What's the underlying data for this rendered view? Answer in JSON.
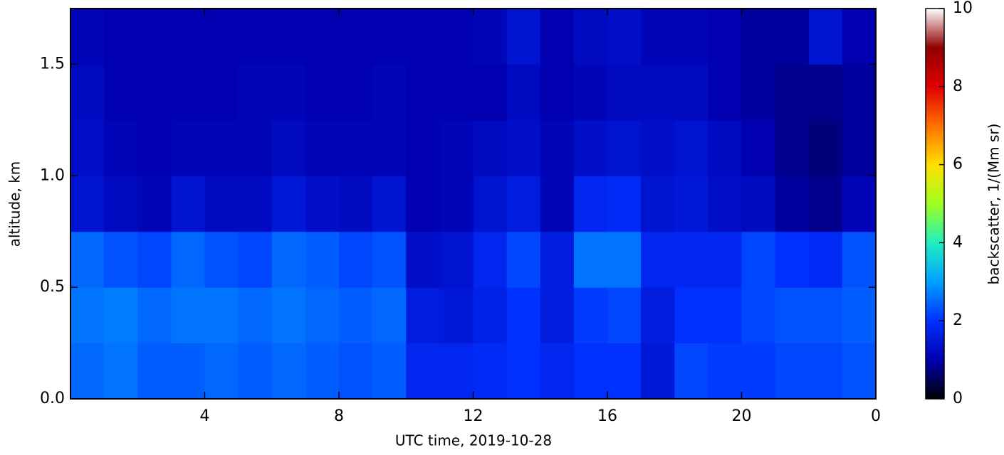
{
  "chart_data": {
    "type": "heatmap",
    "xlabel": "UTC time,  2019-10-28",
    "ylabel": "altitude, km",
    "colorbar_label": "backscatter, 1/(Mm sr)",
    "xbins": [
      0,
      1,
      2,
      3,
      4,
      5,
      6,
      7,
      8,
      9,
      10,
      11,
      12,
      13,
      14,
      15,
      16,
      17,
      18,
      19,
      20,
      21,
      22,
      23,
      24
    ],
    "ybins": [
      0,
      0.25,
      0.5,
      0.75,
      1.0,
      1.25,
      1.5,
      1.75
    ],
    "values": [
      [
        2.5,
        2.6,
        2.4,
        2.4,
        2.5,
        2.4,
        2.5,
        2.4,
        2.3,
        2.4,
        1.8,
        1.8,
        1.9,
        2.0,
        1.8,
        2.0,
        2.0,
        1.5,
        2.2,
        2.1,
        2.1,
        2.2,
        2.2,
        2.3
      ],
      [
        2.6,
        2.7,
        2.5,
        2.6,
        2.6,
        2.5,
        2.6,
        2.5,
        2.4,
        2.5,
        1.6,
        1.5,
        1.7,
        2.0,
        1.6,
        2.1,
        2.2,
        1.6,
        2.0,
        2.0,
        2.2,
        2.3,
        2.3,
        2.4
      ],
      [
        2.5,
        2.3,
        2.2,
        2.5,
        2.3,
        2.2,
        2.5,
        2.4,
        2.2,
        2.3,
        1.3,
        1.4,
        1.8,
        2.2,
        1.6,
        2.6,
        2.6,
        1.8,
        1.8,
        1.8,
        2.2,
        2.0,
        1.9,
        2.3
      ],
      [
        1.4,
        1.2,
        1.1,
        1.4,
        1.2,
        1.2,
        1.5,
        1.3,
        1.2,
        1.4,
        1.0,
        1.1,
        1.4,
        1.6,
        1.1,
        1.8,
        1.9,
        1.4,
        1.5,
        1.3,
        1.2,
        0.9,
        0.8,
        1.1
      ],
      [
        1.3,
        1.1,
        1.0,
        1.1,
        1.1,
        1.1,
        1.2,
        1.1,
        1.1,
        1.1,
        1.0,
        1.1,
        1.2,
        1.3,
        1.1,
        1.3,
        1.4,
        1.3,
        1.4,
        1.2,
        1.0,
        0.8,
        0.7,
        0.9
      ],
      [
        1.2,
        1.0,
        1.0,
        1.0,
        1.0,
        1.1,
        1.1,
        1.0,
        1.0,
        1.1,
        1.0,
        1.0,
        1.0,
        1.2,
        1.0,
        1.1,
        1.2,
        1.2,
        1.2,
        1.0,
        0.9,
        0.8,
        0.8,
        0.9
      ],
      [
        1.1,
        1.0,
        1.0,
        1.0,
        1.0,
        1.0,
        1.0,
        1.0,
        1.0,
        1.0,
        1.0,
        1.0,
        1.1,
        1.4,
        1.0,
        1.2,
        1.3,
        1.1,
        1.1,
        1.0,
        0.9,
        0.9,
        1.4,
        1.0
      ]
    ],
    "xlim": [
      0,
      24
    ],
    "xticks": [
      4,
      8,
      12,
      16,
      20,
      {
        "value": 24,
        "label": "0"
      }
    ],
    "ylim": [
      0,
      1.75
    ],
    "yticks": [
      {
        "value": 0,
        "label": "0.0"
      },
      {
        "value": 0.5,
        "label": "0.5"
      },
      {
        "value": 1.0,
        "label": "1.0"
      },
      {
        "value": 1.5,
        "label": "1.5"
      }
    ],
    "clim": [
      0,
      10
    ],
    "cticks": [
      0,
      2,
      4,
      6,
      8,
      10
    ],
    "colormap": [
      "#000000",
      "#0000b0",
      "#0030ff",
      "#00a0ff",
      "#20f0c0",
      "#a0ff20",
      "#ffe000",
      "#ff7000",
      "#e00000",
      "#900000",
      "#ffffff"
    ]
  }
}
